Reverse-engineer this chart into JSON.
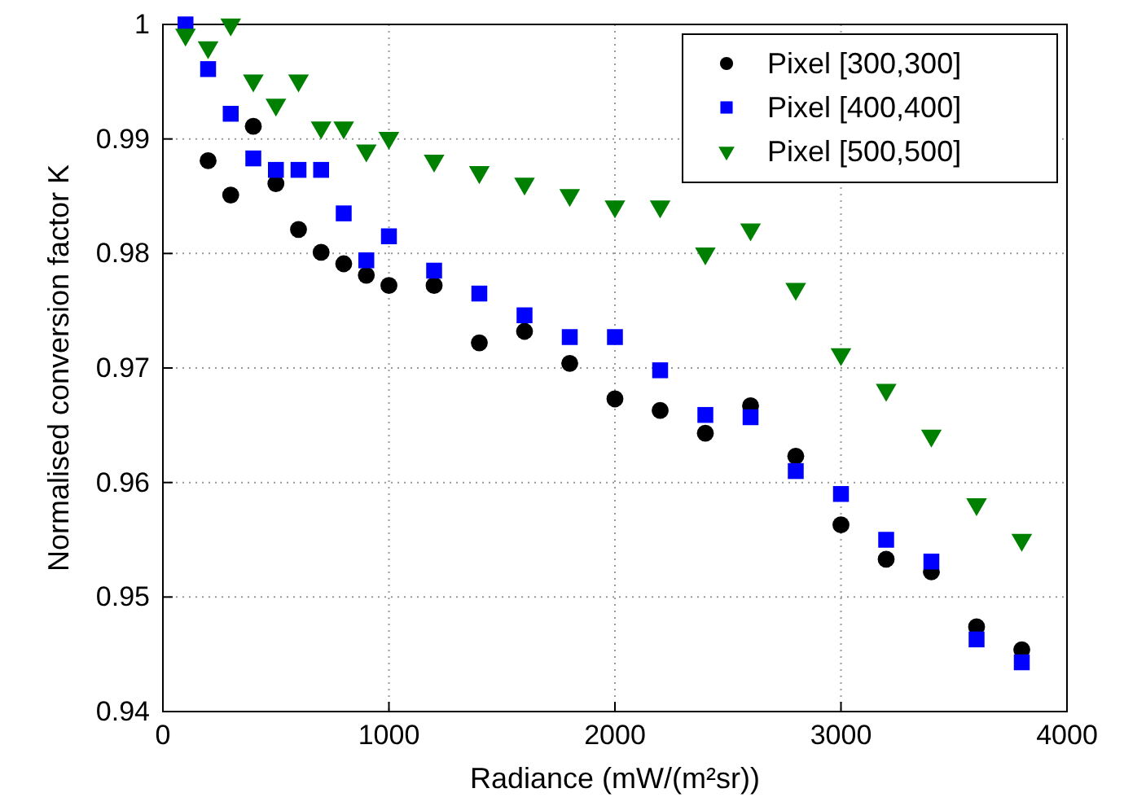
{
  "chart_data": {
    "type": "scatter",
    "xlabel": "Radiance (mW/(m²sr))",
    "ylabel": "Normalised conversion factor K",
    "xlim": [
      0,
      4000
    ],
    "xticks": [
      0,
      1000,
      2000,
      3000,
      4000
    ],
    "ylim": [
      0.94,
      1
    ],
    "yticks": [
      0.94,
      0.95,
      0.96,
      0.97,
      0.98,
      0.99,
      1
    ],
    "grid": true,
    "legend": "top right",
    "x": [
      100,
      200,
      300,
      400,
      500,
      600,
      700,
      800,
      900,
      1000,
      1200,
      1400,
      1600,
      1800,
      2000,
      2200,
      2400,
      2600,
      2800,
      3000,
      3200,
      3400,
      3600,
      3800
    ],
    "series": [
      {
        "name": "Pixel [300,300]",
        "color": "#000000",
        "marker": "circle",
        "values": [
          null,
          0.9881,
          0.9851,
          0.9911,
          0.9861,
          0.9821,
          0.9801,
          0.9791,
          0.9781,
          0.9772,
          0.9772,
          0.9722,
          0.9732,
          0.9704,
          0.9673,
          0.9663,
          0.9643,
          0.9667,
          0.9623,
          0.9563,
          0.9533,
          0.9522,
          0.9474,
          0.9454
        ]
      },
      {
        "name": "Pixel [400,400]",
        "color": "#0000ff",
        "marker": "square",
        "values": [
          1.0,
          0.9961,
          0.9922,
          0.9883,
          0.9873,
          0.9873,
          0.9873,
          0.9835,
          0.9794,
          0.9815,
          0.9785,
          0.9765,
          0.9746,
          0.9727,
          0.9727,
          0.9698,
          0.9659,
          0.9657,
          0.961,
          0.959,
          0.955,
          0.9531,
          0.9463,
          0.9443
        ]
      },
      {
        "name": "Pixel [500,500]",
        "color": "#008000",
        "marker": "triangle",
        "values": [
          0.9991,
          0.998,
          1.0,
          0.9951,
          0.993,
          0.9951,
          0.991,
          0.991,
          0.989,
          0.9901,
          0.9881,
          0.9871,
          0.9861,
          0.9851,
          0.9841,
          0.9841,
          0.98,
          0.9821,
          0.9769,
          0.9712,
          0.9681,
          0.9641,
          0.9581,
          0.955
        ]
      }
    ]
  }
}
